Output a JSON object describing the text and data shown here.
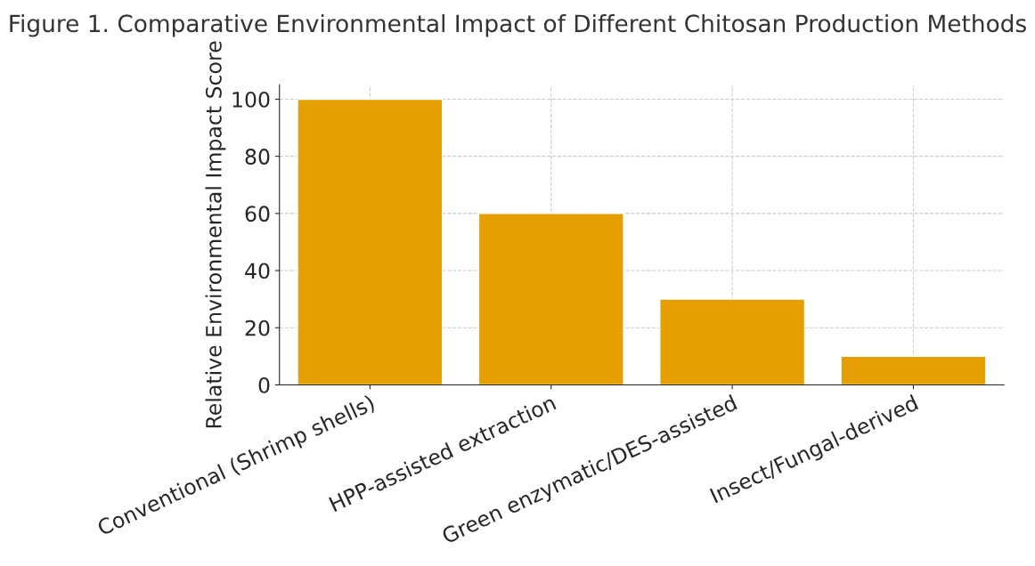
{
  "chart_data": {
    "type": "bar",
    "title": "Figure 1. Comparative Environmental Impact of Different Chitosan Production Methods",
    "ylabel": "Relative Environmental Impact Score",
    "categories": [
      "Conventional (Shrimp shells)",
      "HPP-assisted extraction",
      "Green enzymatic/DES-assisted",
      "Insect/Fungal-derived"
    ],
    "values": [
      100,
      60,
      30,
      10
    ],
    "color": "#e69f00",
    "ylim": [
      0,
      105
    ],
    "yticks": [
      0,
      20,
      40,
      60,
      80,
      100
    ],
    "grid": true,
    "line_style": "dashed"
  }
}
